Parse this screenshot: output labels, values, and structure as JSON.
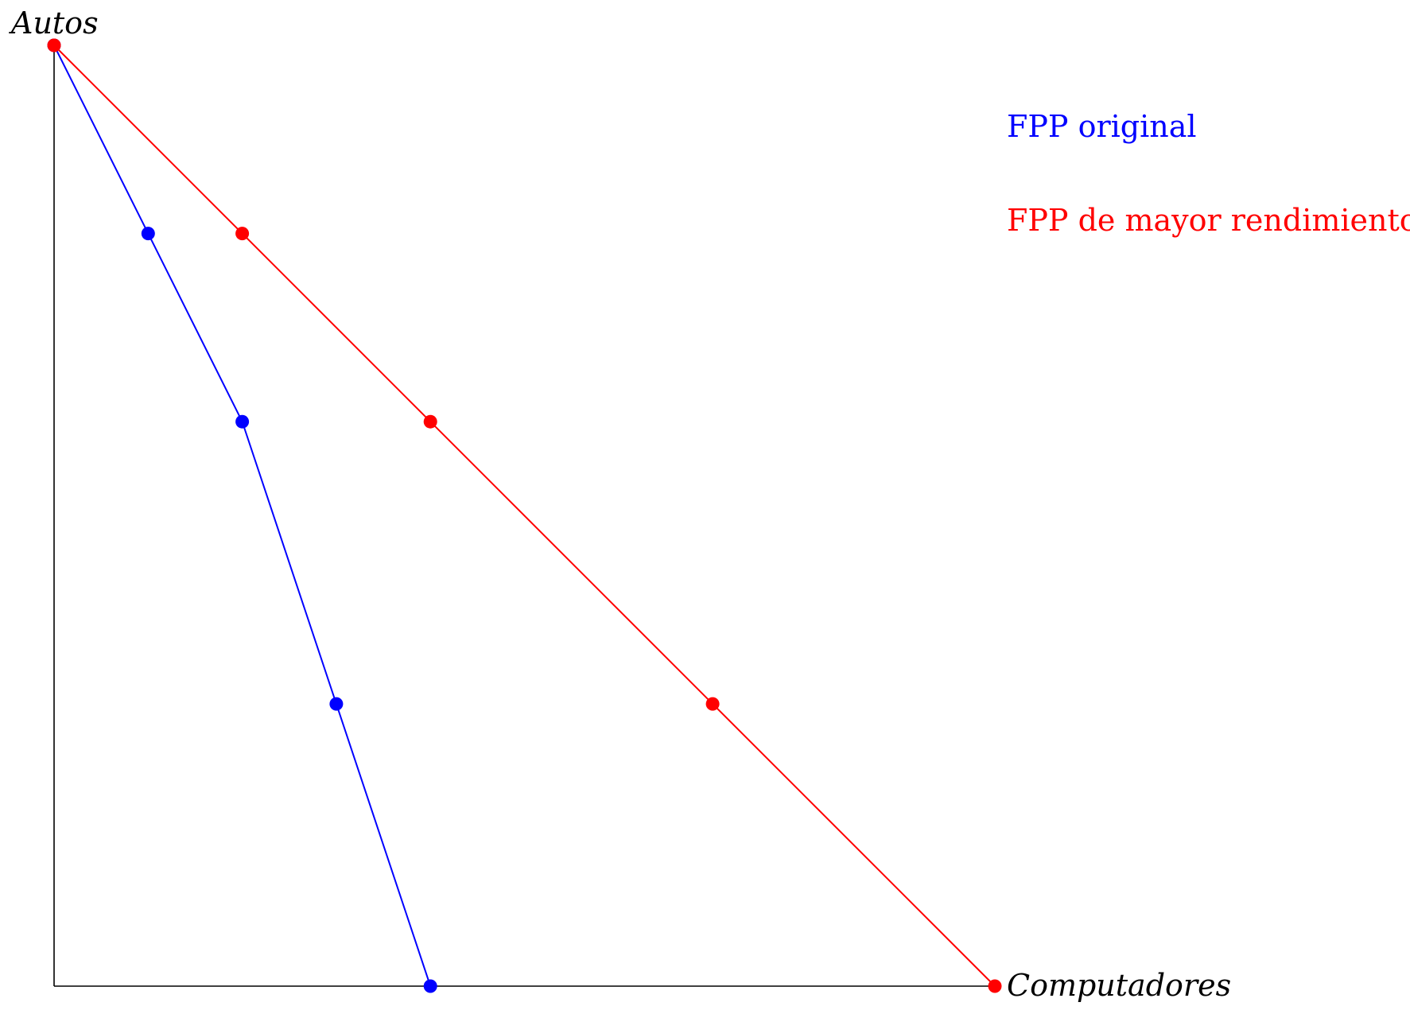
{
  "chart_data": {
    "type": "line",
    "xlabel": "Computadores",
    "ylabel": "Autos",
    "xlim": [
      0,
      10
    ],
    "ylim": [
      0,
      10
    ],
    "grid": false,
    "legend_position": "top-right",
    "series": [
      {
        "name": "FPP original",
        "color": "#0000ff",
        "x": [
          0,
          1,
          2,
          3,
          4
        ],
        "y": [
          10,
          8,
          6,
          3,
          0
        ]
      },
      {
        "name": "FPP de mayor rendimiento",
        "color": "#ff0000",
        "x": [
          0,
          2,
          4,
          7,
          10
        ],
        "y": [
          10,
          8,
          6,
          3,
          0
        ]
      }
    ]
  }
}
